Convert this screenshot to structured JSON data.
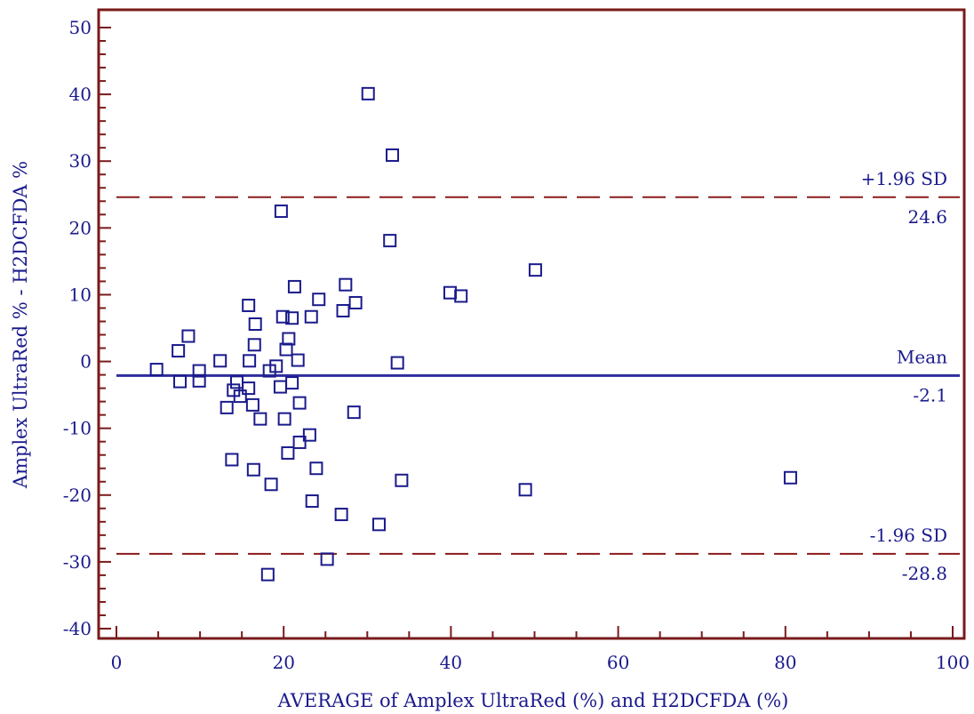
{
  "chart_data": {
    "type": "scatter",
    "title": "",
    "xlabel": "AVERAGE of Amplex UltraRed (%) and H2DCFDA (%)",
    "ylabel": "Amplex UltraRed % - H2DCFDA %",
    "xlim": [
      0,
      100
    ],
    "ylim": [
      -40,
      50
    ],
    "x_ticks": [
      0,
      20,
      40,
      60,
      80,
      100
    ],
    "y_ticks": [
      -40,
      -30,
      -20,
      -10,
      0,
      10,
      20,
      30,
      40,
      50
    ],
    "grid": false,
    "colors": {
      "frame": "#7a1a1a",
      "points": "#1a1a8c",
      "mean_line": "#2e2e9e",
      "sd_lines": "#8b1a1a",
      "text": "#1a1a8c"
    },
    "reference_lines": [
      {
        "name": "+1.96 SD",
        "value": 24.6,
        "value_label": "24.6",
        "style": "dashed"
      },
      {
        "name": "Mean",
        "value": -2.1,
        "value_label": "-2.1",
        "style": "solid"
      },
      {
        "name": "-1.96 SD",
        "value": -28.8,
        "value_label": "-28.8",
        "style": "dashed"
      }
    ],
    "points": [
      [
        4.8,
        -1.2
      ],
      [
        7.4,
        1.6
      ],
      [
        7.6,
        -3.0
      ],
      [
        8.6,
        3.8
      ],
      [
        9.9,
        -1.4
      ],
      [
        9.9,
        -2.9
      ],
      [
        12.4,
        0.1
      ],
      [
        13.2,
        -6.9
      ],
      [
        13.8,
        -14.7
      ],
      [
        14.0,
        -4.3
      ],
      [
        14.4,
        -3.1
      ],
      [
        14.8,
        -5.2
      ],
      [
        15.8,
        -4.0
      ],
      [
        15.8,
        8.4
      ],
      [
        15.9,
        0.1
      ],
      [
        16.3,
        -6.5
      ],
      [
        16.4,
        -16.2
      ],
      [
        16.5,
        2.5
      ],
      [
        16.6,
        5.6
      ],
      [
        17.2,
        -8.6
      ],
      [
        18.1,
        -31.9
      ],
      [
        18.3,
        -1.4
      ],
      [
        18.5,
        -18.4
      ],
      [
        19.1,
        -0.7
      ],
      [
        19.6,
        -3.8
      ],
      [
        19.7,
        22.5
      ],
      [
        19.9,
        6.7
      ],
      [
        20.1,
        -8.6
      ],
      [
        20.3,
        1.8
      ],
      [
        20.5,
        -13.7
      ],
      [
        20.6,
        3.4
      ],
      [
        21.0,
        6.5
      ],
      [
        21.0,
        -3.2
      ],
      [
        21.3,
        11.2
      ],
      [
        21.7,
        0.2
      ],
      [
        21.9,
        -6.2
      ],
      [
        21.9,
        -12.1
      ],
      [
        23.1,
        -11.0
      ],
      [
        23.3,
        6.7
      ],
      [
        23.4,
        -20.9
      ],
      [
        23.9,
        -16.0
      ],
      [
        24.2,
        9.3
      ],
      [
        25.2,
        -29.6
      ],
      [
        26.9,
        -22.9
      ],
      [
        27.1,
        7.6
      ],
      [
        27.4,
        11.5
      ],
      [
        28.4,
        -7.6
      ],
      [
        28.6,
        8.8
      ],
      [
        30.1,
        40.1
      ],
      [
        31.4,
        -24.4
      ],
      [
        32.7,
        18.1
      ],
      [
        33.0,
        30.9
      ],
      [
        33.6,
        -0.2
      ],
      [
        34.1,
        -17.8
      ],
      [
        39.9,
        10.3
      ],
      [
        41.2,
        9.8
      ],
      [
        48.9,
        -19.2
      ],
      [
        50.1,
        13.7
      ],
      [
        80.6,
        -17.4
      ]
    ]
  }
}
